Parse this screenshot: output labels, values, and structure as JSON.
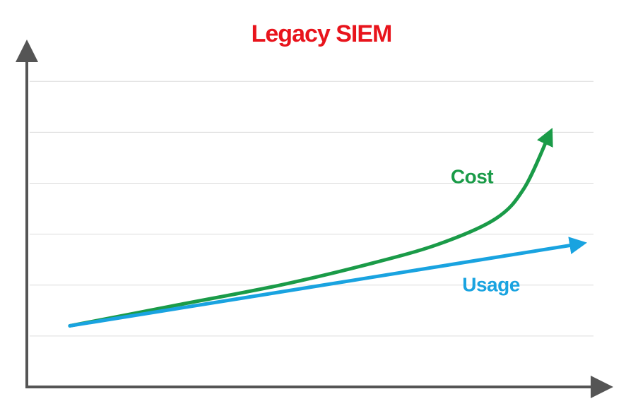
{
  "chart_data": {
    "type": "line",
    "title": "Legacy SIEM",
    "xlim": [
      0,
      12
    ],
    "ylim": [
      0,
      6.6
    ],
    "yticks": [
      1,
      2,
      3,
      4,
      5,
      6
    ],
    "grid": true,
    "series": [
      {
        "name": "Cost",
        "color": "#1a9b48",
        "x": [
          0.9,
          3.1,
          5.3,
          7.1,
          8.6,
          9.8,
          10.4,
          10.9
        ],
        "values": [
          1.2,
          1.6,
          2.0,
          2.4,
          2.8,
          3.3,
          3.9,
          4.9
        ]
      },
      {
        "name": "Usage",
        "color": "#19a3e0",
        "x": [
          0.9,
          11.5
        ],
        "values": [
          1.2,
          2.8
        ]
      }
    ]
  }
}
